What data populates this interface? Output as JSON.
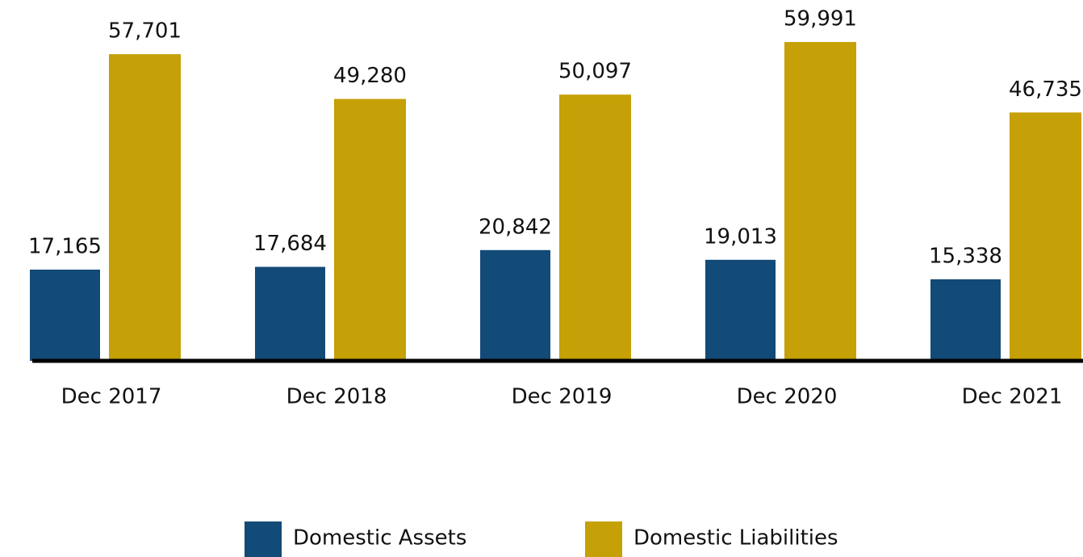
{
  "chart_data": {
    "type": "bar",
    "categories": [
      "Dec 2017",
      "Dec 2018",
      "Dec 2019",
      "Dec 2020",
      "Dec 2021"
    ],
    "series": [
      {
        "name": "Domestic Assets",
        "color": "#124a78",
        "values": [
          17165,
          17684,
          20842,
          19013,
          15338
        ],
        "value_labels": [
          "17,165",
          "17,684",
          "20,842",
          "19,013",
          "15,338"
        ]
      },
      {
        "name": "Domestic Liabilities",
        "color": "#c5a006",
        "values": [
          57701,
          49280,
          50097,
          59991,
          46735
        ],
        "value_labels": [
          "57,701",
          "49,280",
          "50,097",
          "59,991",
          "46,735"
        ]
      }
    ],
    "ylim": [
      0,
      60000
    ],
    "legend": "bottom"
  }
}
